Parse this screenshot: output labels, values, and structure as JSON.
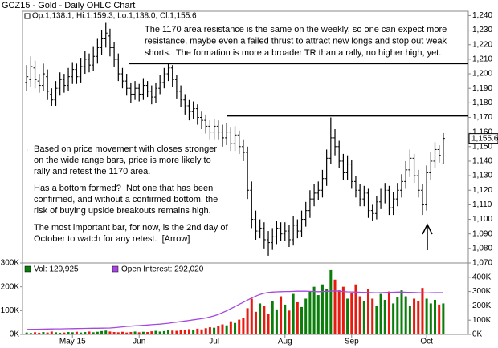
{
  "chart_data": [
    {
      "type": "ohlc",
      "title": "GCZ15 - Gold - Daily OHLC Chart",
      "legend_text": "Op:1,138.1, Hi:1,159.3, Lo:1,138.0, Cl:1,155.6",
      "color": "#000000",
      "open": [
        1194,
        1196,
        1204,
        1195,
        1192,
        1198,
        1186,
        1182,
        1190,
        1196,
        1192,
        1198,
        1203,
        1198,
        1205,
        1210,
        1206,
        1212,
        1218,
        1224,
        1226,
        1218,
        1210,
        1200,
        1195,
        1190,
        1186,
        1190,
        1186,
        1192,
        1188,
        1184,
        1190,
        1194,
        1200,
        1204,
        1196,
        1188,
        1182,
        1178,
        1174,
        1176,
        1170,
        1168,
        1164,
        1160,
        1164,
        1160,
        1156,
        1160,
        1152,
        1158,
        1150,
        1146,
        1120,
        1100,
        1092,
        1094,
        1086,
        1084,
        1088,
        1094,
        1090,
        1092,
        1086,
        1096,
        1092,
        1100,
        1106,
        1114,
        1118,
        1120,
        1128,
        1142,
        1156,
        1150,
        1140,
        1132,
        1138,
        1126,
        1120,
        1114,
        1118,
        1106,
        1104,
        1112,
        1116,
        1120,
        1108,
        1114,
        1120,
        1126,
        1134,
        1142,
        1130,
        1120,
        1110,
        1132,
        1140,
        1148,
        1138.1
      ],
      "high": [
        1206,
        1212,
        1209,
        1200,
        1207,
        1203,
        1190,
        1195,
        1201,
        1200,
        1204,
        1208,
        1207,
        1211,
        1216,
        1214,
        1219,
        1224,
        1230,
        1235,
        1231,
        1222,
        1214,
        1204,
        1200,
        1194,
        1195,
        1193,
        1197,
        1195,
        1192,
        1194,
        1199,
        1204,
        1207,
        1206,
        1199,
        1192,
        1186,
        1182,
        1181,
        1179,
        1174,
        1172,
        1168,
        1169,
        1168,
        1165,
        1166,
        1163,
        1164,
        1161,
        1155,
        1150,
        1126,
        1106,
        1100,
        1098,
        1092,
        1094,
        1099,
        1098,
        1098,
        1096,
        1102,
        1100,
        1106,
        1112,
        1120,
        1124,
        1126,
        1134,
        1148,
        1170,
        1162,
        1154,
        1145,
        1144,
        1141,
        1130,
        1124,
        1123,
        1121,
        1110,
        1116,
        1121,
        1125,
        1123,
        1119,
        1125,
        1131,
        1140,
        1148,
        1145,
        1134,
        1124,
        1137,
        1146,
        1153,
        1151,
        1159.3
      ],
      "low": [
        1188,
        1191,
        1190,
        1187,
        1188,
        1182,
        1178,
        1178,
        1185,
        1187,
        1188,
        1193,
        1193,
        1194,
        1200,
        1201,
        1202,
        1207,
        1213,
        1218,
        1212,
        1205,
        1195,
        1190,
        1185,
        1180,
        1182,
        1181,
        1182,
        1184,
        1179,
        1180,
        1186,
        1190,
        1195,
        1191,
        1183,
        1177,
        1172,
        1168,
        1169,
        1165,
        1162,
        1159,
        1155,
        1155,
        1155,
        1150,
        1151,
        1147,
        1147,
        1145,
        1140,
        1114,
        1094,
        1086,
        1087,
        1080,
        1075,
        1079,
        1083,
        1085,
        1085,
        1081,
        1082,
        1087,
        1088,
        1095,
        1101,
        1109,
        1113,
        1115,
        1123,
        1138,
        1144,
        1135,
        1127,
        1127,
        1121,
        1115,
        1109,
        1109,
        1101,
        1099,
        1100,
        1107,
        1111,
        1103,
        1103,
        1109,
        1115,
        1121,
        1129,
        1125,
        1115,
        1103,
        1106,
        1127,
        1135,
        1139,
        1138.0
      ],
      "close": [
        1198,
        1205,
        1196,
        1192,
        1200,
        1188,
        1182,
        1190,
        1196,
        1192,
        1198,
        1203,
        1198,
        1205,
        1210,
        1206,
        1212,
        1218,
        1224,
        1228,
        1218,
        1210,
        1200,
        1195,
        1190,
        1186,
        1190,
        1186,
        1192,
        1188,
        1184,
        1190,
        1194,
        1200,
        1204,
        1196,
        1188,
        1182,
        1178,
        1174,
        1176,
        1170,
        1168,
        1164,
        1160,
        1164,
        1160,
        1156,
        1160,
        1152,
        1158,
        1150,
        1146,
        1120,
        1100,
        1092,
        1094,
        1086,
        1084,
        1088,
        1094,
        1090,
        1092,
        1086,
        1096,
        1092,
        1100,
        1106,
        1114,
        1118,
        1120,
        1128,
        1142,
        1156,
        1150,
        1140,
        1132,
        1138,
        1126,
        1120,
        1114,
        1118,
        1106,
        1104,
        1112,
        1116,
        1120,
        1108,
        1114,
        1120,
        1126,
        1134,
        1142,
        1130,
        1120,
        1110,
        1132,
        1140,
        1148,
        1144,
        1155.6
      ],
      "last_label": "1,155.6",
      "reference_lines": [
        1207,
        1171
      ],
      "annotations": {
        "top": [
          "The 1170 area resistance is the same on the weekly, so one can expect more",
          "resistance, maybe even a failed thrust to attract new longs and stop out weak",
          "shorts.  The formation is more a broader TR than a rally, no higher high, yet."
        ],
        "left": [
          "Based on price movement with closes stronger",
          "on the wide range bars, price is more likely to",
          "rally and retest the 1170 area.",
          "Has a bottom formed?  Not one that has been",
          "confirmed, and without a confirmed bottom, the",
          "risk of buying upside breakouts remains high.",
          "The most important bar, for now, is the 2nd day of",
          "October to watch for any retest.  [Arrow]"
        ]
      },
      "xlim": [
        -1,
        106
      ],
      "ylim": [
        1070,
        1243
      ],
      "yticks": [
        {
          "value": 1070,
          "label": "1,070"
        },
        {
          "value": 1080,
          "label": "1,080"
        },
        {
          "value": 1090,
          "label": "1,090"
        },
        {
          "value": 1100,
          "label": "1,100"
        },
        {
          "value": 1110,
          "label": "1,110"
        },
        {
          "value": 1120,
          "label": "1,120"
        },
        {
          "value": 1130,
          "label": "1,130"
        },
        {
          "value": 1140,
          "label": "1,140"
        },
        {
          "value": 1150,
          "label": "1,150"
        },
        {
          "value": 1160,
          "label": "1,160"
        },
        {
          "value": 1170,
          "label": "1,170"
        },
        {
          "value": 1180,
          "label": "1,180"
        },
        {
          "value": 1190,
          "label": "1,190"
        },
        {
          "value": 1200,
          "label": "1,200"
        },
        {
          "value": 1210,
          "label": "1,210"
        },
        {
          "value": 1220,
          "label": "1,220"
        },
        {
          "value": 1230,
          "label": "1,230"
        },
        {
          "value": 1240,
          "label": "1,240"
        }
      ]
    },
    {
      "type": "volume",
      "series": [
        {
          "name": "Vol: 129,925",
          "up_color": "#0a7d0a",
          "down_color": "#e8190f",
          "values": [
            8000,
            6000,
            9000,
            7000,
            10000,
            8000,
            12000,
            9000,
            7000,
            8000,
            10000,
            9000,
            11000,
            8000,
            10000,
            12000,
            9000,
            11000,
            14000,
            16000,
            12000,
            10000,
            9000,
            11000,
            8000,
            10000,
            12000,
            9000,
            11000,
            10000,
            13000,
            15000,
            12000,
            14000,
            18000,
            16000,
            15000,
            20000,
            17000,
            22000,
            19000,
            24000,
            21000,
            26000,
            30000,
            28000,
            35000,
            42000,
            38000,
            55000,
            48000,
            62000,
            70000,
            110000,
            150000,
            95000,
            130000,
            120000,
            85000,
            140000,
            105000,
            160000,
            125000,
            100000,
            170000,
            135000,
            115000,
            150000,
            180000,
            200000,
            165000,
            210000,
            190000,
            270000,
            230000,
            185000,
            200000,
            150000,
            175000,
            210000,
            160000,
            140000,
            190000,
            150000,
            120000,
            170000,
            145000,
            180000,
            130000,
            155000,
            185000,
            160000,
            120000,
            150000,
            140000,
            195000,
            150000,
            130000,
            145000,
            125000,
            129925
          ]
        },
        {
          "name": "Open Interest: 292,020",
          "color": "#a548e0",
          "axis": "y2",
          "values": [
            35000,
            35500,
            36000,
            36500,
            37000,
            37500,
            38000,
            38500,
            39000,
            39500,
            40000,
            40500,
            41000,
            41500,
            42000,
            42500,
            43000,
            43500,
            44000,
            44500,
            45000,
            47000,
            50000,
            53000,
            56000,
            58000,
            60000,
            62000,
            64000,
            66000,
            68000,
            70000,
            72000,
            75000,
            78000,
            82000,
            86000,
            90000,
            94000,
            98000,
            102000,
            106000,
            110000,
            115000,
            122000,
            130000,
            140000,
            152000,
            165000,
            180000,
            195000,
            210000,
            225000,
            240000,
            255000,
            268000,
            280000,
            288000,
            293000,
            296000,
            298000,
            299000,
            300000,
            300000,
            301000,
            302000,
            303000,
            302000,
            301000,
            300000,
            299000,
            300000,
            301000,
            303000,
            304000,
            302000,
            300000,
            298000,
            297000,
            296000,
            295000,
            294000,
            293000,
            292000,
            291000,
            292000,
            293000,
            294000,
            295000,
            296000,
            296000,
            295000,
            294000,
            293000,
            292000,
            291000,
            290000,
            291000,
            292000,
            292000,
            292020
          ]
        }
      ],
      "xlim": [
        -1,
        106
      ],
      "xticks": [
        {
          "value": 11,
          "label": "May 15"
        },
        {
          "value": 27,
          "label": "Jun"
        },
        {
          "value": 45,
          "label": "Jul"
        },
        {
          "value": 62,
          "label": "Aug"
        },
        {
          "value": 78,
          "label": "Sep"
        },
        {
          "value": 96,
          "label": "Oct"
        }
      ],
      "ylim": [
        0,
        300000
      ],
      "yticks": [
        {
          "value": 0,
          "label": "0K"
        },
        {
          "value": 100000,
          "label": "100K"
        },
        {
          "value": 200000,
          "label": "200K"
        },
        {
          "value": 300000,
          "label": "300K"
        }
      ],
      "y2lim": [
        0,
        500000
      ],
      "y2ticks": [
        {
          "value": 0,
          "label": "0K"
        },
        {
          "value": 100000,
          "label": "100K"
        },
        {
          "value": 200000,
          "label": "200K"
        },
        {
          "value": 300000,
          "label": "300K"
        },
        {
          "value": 400000,
          "label": "400K"
        }
      ]
    }
  ]
}
